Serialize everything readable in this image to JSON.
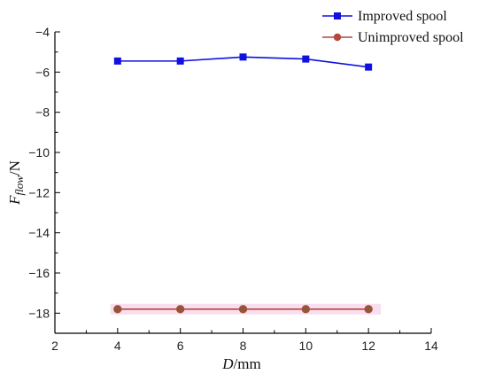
{
  "chart_data": {
    "type": "line",
    "xlabel": {
      "main": "D",
      "unit": "/mm"
    },
    "ylabel": {
      "main": "F",
      "sub": "flow",
      "unit": "/N"
    },
    "xlim": [
      2,
      14
    ],
    "ylim": [
      -19,
      -4
    ],
    "xticks": [
      2,
      4,
      6,
      8,
      10,
      12,
      14
    ],
    "yticks": [
      -4,
      -6,
      -8,
      -10,
      -12,
      -14,
      -16,
      -18
    ],
    "grid": false,
    "legend_position": "top-right",
    "series": [
      {
        "name": "Improved spool",
        "color": "#1010e0",
        "marker": "square",
        "x": [
          4,
          6,
          8,
          10,
          12
        ],
        "y": [
          -5.45,
          -5.45,
          -5.25,
          -5.35,
          -5.75
        ]
      },
      {
        "name": "Unimproved spool",
        "color": "#b5473b",
        "marker": "circle",
        "x": [
          4,
          6,
          8,
          10,
          12
        ],
        "y": [
          -17.8,
          -17.8,
          -17.8,
          -17.8,
          -17.8
        ]
      }
    ]
  }
}
